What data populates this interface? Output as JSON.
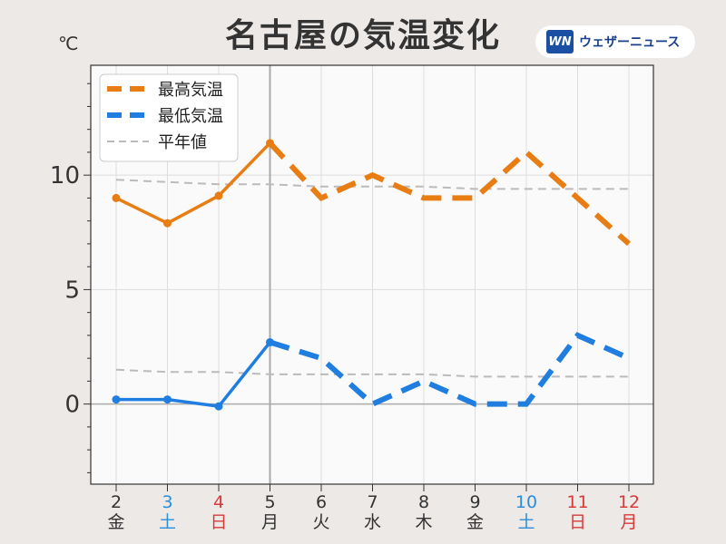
{
  "title": "名古屋の気温変化",
  "unit": "℃",
  "brand": {
    "mark": "WN",
    "name": "ウェザーニュース"
  },
  "colors": {
    "high": "#e87d14",
    "low": "#1f7ee0",
    "normal": "#bbbbbb",
    "weekday": "#333333",
    "saturday": "#2a8fd8",
    "sunday": "#d83a3a"
  },
  "chart_data": {
    "type": "line",
    "categories": [
      "2",
      "3",
      "4",
      "5",
      "6",
      "7",
      "8",
      "9",
      "10",
      "11",
      "12"
    ],
    "weekdays": [
      "金",
      "土",
      "日",
      "月",
      "火",
      "水",
      "木",
      "金",
      "土",
      "日",
      "月"
    ],
    "day_types": [
      "weekday",
      "saturday",
      "sunday",
      "weekday",
      "weekday",
      "weekday",
      "weekday",
      "weekday",
      "saturday",
      "sunday",
      "sunday"
    ],
    "ylim": [
      -3.5,
      14.8
    ],
    "yticks": [
      0,
      5,
      10
    ],
    "grid": true,
    "legend_position": "top-left",
    "observed_through_index": 3,
    "series": [
      {
        "name": "最高気温",
        "key": "high",
        "values": [
          9.0,
          7.9,
          9.1,
          11.4,
          9.0,
          10.0,
          9.0,
          9.0,
          11.0,
          9.0,
          7.0
        ]
      },
      {
        "name": "最低気温",
        "key": "low",
        "values": [
          0.2,
          0.2,
          -0.1,
          2.7,
          2.0,
          0.0,
          1.0,
          0.0,
          0.0,
          3.0,
          2.0
        ]
      },
      {
        "name": "平年値",
        "key": "normal_high",
        "values": [
          9.8,
          9.7,
          9.6,
          9.6,
          9.5,
          9.5,
          9.5,
          9.4,
          9.4,
          9.4,
          9.4
        ]
      },
      {
        "key": "normal_low",
        "values": [
          1.5,
          1.4,
          1.4,
          1.3,
          1.3,
          1.3,
          1.3,
          1.2,
          1.2,
          1.2,
          1.2
        ]
      }
    ]
  }
}
